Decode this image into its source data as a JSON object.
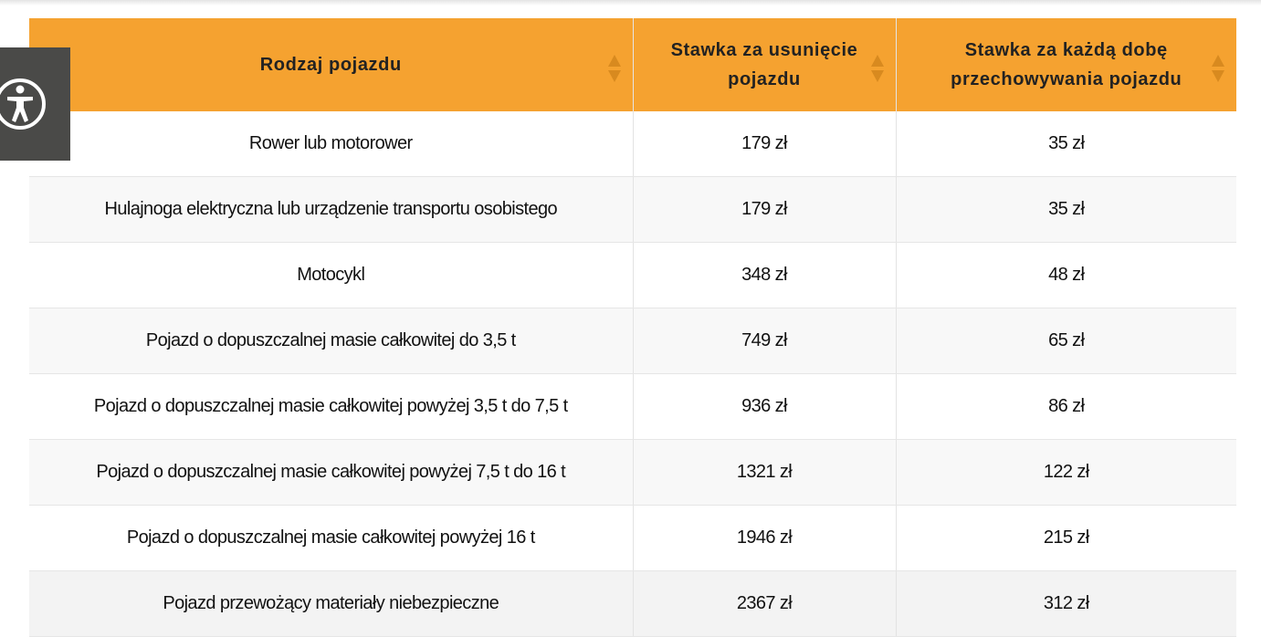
{
  "table": {
    "header": [
      "Rodzaj pojazdu",
      "Stawka za usunięcie pojazdu",
      "Stawka za każdą dobę przechowywania pojazdu"
    ],
    "rows": [
      [
        "Rower lub motorower",
        "179 zł",
        "35 zł"
      ],
      [
        "Hulajnoga elektryczna lub urządzenie transportu osobistego",
        "179 zł",
        "35 zł"
      ],
      [
        "Motocykl",
        "348 zł",
        "48 zł"
      ],
      [
        "Pojazd o dopuszczalnej masie całkowitej do 3,5 t",
        "749 zł",
        "65 zł"
      ],
      [
        "Pojazd o dopuszczalnej masie całkowitej powyżej 3,5 t do 7,5 t",
        "936 zł",
        "86 zł"
      ],
      [
        "Pojazd o dopuszczalnej masie całkowitej powyżej 7,5 t do 16 t",
        "1321 zł",
        "122 zł"
      ],
      [
        "Pojazd o dopuszczalnej masie całkowitej powyżej 16 t",
        "1946 zł",
        "215 zł"
      ],
      [
        "Pojazd przewożący materiały niebezpieczne",
        "2367 zł",
        "312 zł"
      ]
    ]
  }
}
